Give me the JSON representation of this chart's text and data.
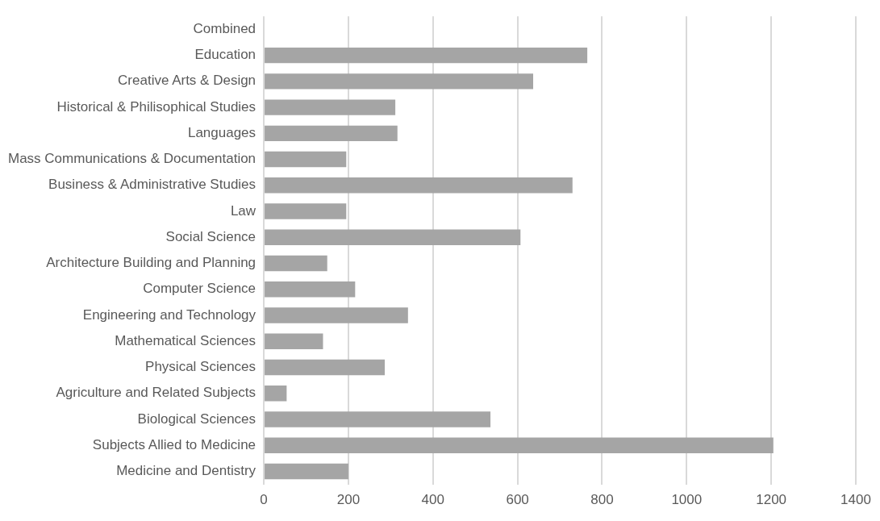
{
  "chart_data": {
    "type": "bar",
    "orientation": "horizontal",
    "categories": [
      "Combined",
      "Education",
      "Creative Arts & Design",
      "Historical & Philisophical Studies",
      "Languages",
      "Mass Communications & Documentation",
      "Business & Administrative Studies",
      "Law",
      "Social Science",
      "Architecture Building and Planning",
      "Computer Science",
      "Engineering and Technology",
      "Mathematical Sciences",
      "Physical Sciences",
      "Agriculture and Related Subjects",
      "Biological Sciences",
      "Subjects Allied to Medicine",
      "Medicine and Dentistry"
    ],
    "values": [
      null,
      765,
      637,
      311,
      316,
      195,
      730,
      195,
      607,
      150,
      216,
      341,
      140,
      286,
      54,
      536,
      1205,
      200
    ],
    "color": "#a5a5a5",
    "xlim": [
      0,
      1400
    ],
    "xticks": [
      0,
      200,
      400,
      600,
      800,
      1000,
      1200,
      1400
    ],
    "grid": "x",
    "legend": false
  }
}
